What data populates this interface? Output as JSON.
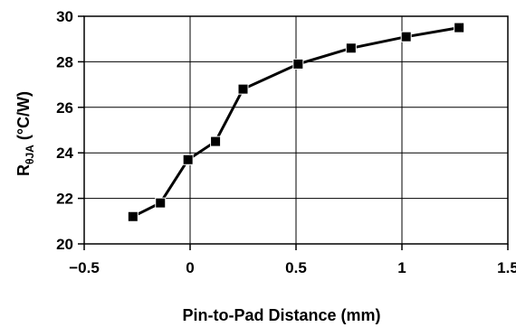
{
  "chart_data": {
    "type": "line",
    "title": "",
    "xlabel": "Pin-to-Pad Distance (mm)",
    "ylabel": {
      "main": "R",
      "subscript": "θJA",
      "unit": " (°C/W)"
    },
    "xlim": [
      -0.5,
      1.5
    ],
    "ylim": [
      20,
      30
    ],
    "xticks": [
      -0.5,
      0,
      0.5,
      1,
      1.5
    ],
    "xtick_labels": [
      "−0.5",
      "0",
      "0.5",
      "1",
      "1.5"
    ],
    "yticks": [
      20,
      22,
      24,
      26,
      28,
      30
    ],
    "ytick_labels": [
      "20",
      "22",
      "24",
      "26",
      "28",
      "30"
    ],
    "grid": true,
    "legend": "none",
    "series": [
      {
        "marker": "square",
        "color": "#000000",
        "x": [
          -0.27,
          -0.14,
          -0.01,
          0.12,
          0.25,
          0.51,
          0.76,
          1.02,
          1.27
        ],
        "y": [
          21.2,
          21.8,
          23.7,
          24.5,
          26.8,
          27.9,
          28.6,
          29.1,
          29.5
        ]
      }
    ]
  }
}
